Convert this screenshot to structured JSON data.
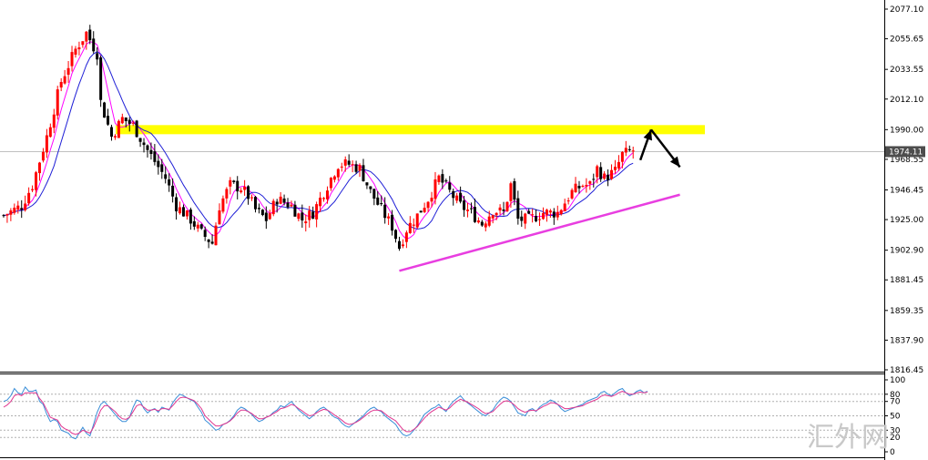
{
  "chart_data": [
    {
      "type": "candlestick",
      "price_axis_ticks": [
        "2077.10",
        "2055.65",
        "2033.55",
        "2012.10",
        "1990.00",
        "1968.55",
        "1946.45",
        "1925.00",
        "1902.90",
        "1881.45",
        "1859.35",
        "1837.90",
        "1816.45"
      ],
      "ylim": [
        1816.45,
        2077.1
      ],
      "current_price": "1974.11",
      "resistance_level": 1990,
      "bar_count": 180,
      "support_trendline": [
        {
          "bar": 110,
          "price": 1888
        },
        {
          "bar": 188,
          "price": 1943
        }
      ],
      "projection_arrows": [
        {
          "from": {
            "bar": 177,
            "price": 1968
          },
          "to": {
            "bar": 180,
            "price": 1990
          }
        },
        {
          "from": {
            "bar": 180,
            "price": 1990
          },
          "to": {
            "bar": 188,
            "price": 1963
          }
        }
      ],
      "moving_averages": [
        {
          "color": "#ff00ff",
          "period": 5
        },
        {
          "color": "#1f1fd6",
          "period": 10
        }
      ],
      "candles_approx": [
        [
          0,
          1928
        ],
        [
          5,
          1935
        ],
        [
          8,
          1950
        ],
        [
          12,
          1985
        ],
        [
          16,
          2025
        ],
        [
          20,
          2048
        ],
        [
          23,
          2060
        ],
        [
          26,
          2045
        ],
        [
          27,
          2010
        ],
        [
          30,
          1985
        ],
        [
          33,
          1998
        ],
        [
          36,
          1993
        ],
        [
          40,
          1975
        ],
        [
          45,
          1955
        ],
        [
          48,
          1935
        ],
        [
          52,
          1925
        ],
        [
          55,
          1915
        ],
        [
          58,
          1908
        ],
        [
          60,
          1935
        ],
        [
          63,
          1950
        ],
        [
          66,
          1948
        ],
        [
          68,
          1942
        ],
        [
          70,
          1932
        ],
        [
          73,
          1925
        ],
        [
          76,
          1940
        ],
        [
          80,
          1935
        ],
        [
          83,
          1925
        ],
        [
          86,
          1930
        ],
        [
          90,
          1950
        ],
        [
          93,
          1965
        ],
        [
          96,
          1965
        ],
        [
          99,
          1962
        ],
        [
          102,
          1945
        ],
        [
          105,
          1932
        ],
        [
          108,
          1920
        ],
        [
          110,
          1905
        ],
        [
          112,
          1918
        ],
        [
          115,
          1928
        ],
        [
          118,
          1940
        ],
        [
          121,
          1955
        ],
        [
          124,
          1945
        ],
        [
          127,
          1935
        ],
        [
          130,
          1930
        ],
        [
          133,
          1922
        ],
        [
          136,
          1932
        ],
        [
          139,
          1930
        ],
        [
          141,
          1950
        ],
        [
          143,
          1925
        ],
        [
          146,
          1925
        ],
        [
          150,
          1930
        ],
        [
          154,
          1930
        ],
        [
          158,
          1945
        ],
        [
          161,
          1950
        ],
        [
          163,
          1950
        ],
        [
          165,
          1962
        ],
        [
          167,
          1955
        ],
        [
          170,
          1960
        ],
        [
          172,
          1972
        ],
        [
          175,
          1975
        ]
      ],
      "candle_colors": {
        "up": "#ff0000",
        "down": "#000000"
      }
    },
    {
      "type": "line",
      "indicator": "oscillator",
      "level_labels": [
        "100",
        "80",
        "70",
        "50",
        "30",
        "20",
        "0"
      ],
      "ylim": [
        0,
        100
      ],
      "reference_levels": [
        80,
        70,
        50,
        30,
        20
      ],
      "series": [
        {
          "color": "#3a8fd8",
          "values": [
            70,
            72,
            78,
            88,
            82,
            80,
            90,
            84,
            84,
            86,
            70,
            66,
            52,
            42,
            45,
            42,
            30,
            28,
            26,
            20,
            18,
            26,
            34,
            26,
            22,
            38,
            55,
            66,
            70,
            64,
            58,
            52,
            46,
            42,
            42,
            48,
            62,
            72,
            70,
            60,
            54,
            58,
            60,
            55,
            62,
            60,
            58,
            68,
            75,
            80,
            78,
            75,
            72,
            70,
            62,
            55,
            44,
            40,
            35,
            30,
            32,
            38,
            40,
            44,
            50,
            58,
            62,
            60,
            56,
            52,
            46,
            42,
            44,
            48,
            50,
            55,
            58,
            64,
            62,
            66,
            70,
            64,
            58,
            54,
            50,
            46,
            50,
            56,
            60,
            62,
            58,
            52,
            48,
            46,
            40,
            36,
            34,
            38,
            42,
            46,
            50,
            56,
            60,
            62,
            58,
            56,
            50,
            46,
            42,
            38,
            30,
            24,
            22,
            24,
            30,
            36,
            44,
            52,
            56,
            60,
            62,
            66,
            60,
            56,
            64,
            70,
            74,
            78,
            72,
            68,
            64,
            60,
            56,
            52,
            50,
            54,
            58,
            66,
            72,
            76,
            74,
            70,
            62,
            54,
            52,
            50,
            58,
            60,
            56,
            62,
            66,
            68,
            72,
            70,
            66,
            60,
            56,
            58,
            60,
            62,
            64,
            66,
            70,
            72,
            74,
            76,
            82,
            84,
            80,
            78,
            82,
            86,
            88,
            82,
            78,
            80,
            84,
            86,
            82,
            84
          ]
        },
        {
          "color": "#e0368f",
          "values": [
            62,
            65,
            70,
            78,
            80,
            78,
            82,
            82,
            82,
            82,
            74,
            68,
            58,
            48,
            46,
            44,
            36,
            32,
            30,
            26,
            24,
            26,
            30,
            28,
            26,
            34,
            46,
            58,
            64,
            64,
            60,
            56,
            50,
            46,
            45,
            48,
            56,
            64,
            66,
            62,
            58,
            58,
            59,
            57,
            60,
            60,
            59,
            64,
            70,
            75,
            76,
            75,
            73,
            71,
            66,
            60,
            50,
            45,
            40,
            36,
            36,
            38,
            40,
            43,
            48,
            54,
            58,
            58,
            56,
            53,
            49,
            46,
            46,
            48,
            50,
            53,
            56,
            60,
            61,
            63,
            66,
            64,
            60,
            57,
            53,
            50,
            51,
            54,
            57,
            59,
            58,
            55,
            51,
            48,
            44,
            40,
            38,
            39,
            41,
            44,
            48,
            52,
            56,
            58,
            58,
            57,
            53,
            49,
            46,
            43,
            37,
            31,
            28,
            28,
            31,
            35,
            41,
            47,
            52,
            56,
            59,
            62,
            60,
            58,
            61,
            66,
            70,
            73,
            71,
            69,
            66,
            63,
            60,
            56,
            53,
            54,
            56,
            61,
            66,
            70,
            71,
            69,
            65,
            60,
            57,
            55,
            57,
            58,
            57,
            60,
            63,
            65,
            68,
            68,
            66,
            63,
            60,
            60,
            61,
            62,
            63,
            64,
            67,
            69,
            71,
            73,
            77,
            79,
            78,
            77,
            79,
            82,
            84,
            82,
            80,
            80,
            82,
            83,
            82,
            83
          ]
        }
      ]
    }
  ],
  "watermark": "汇外网"
}
